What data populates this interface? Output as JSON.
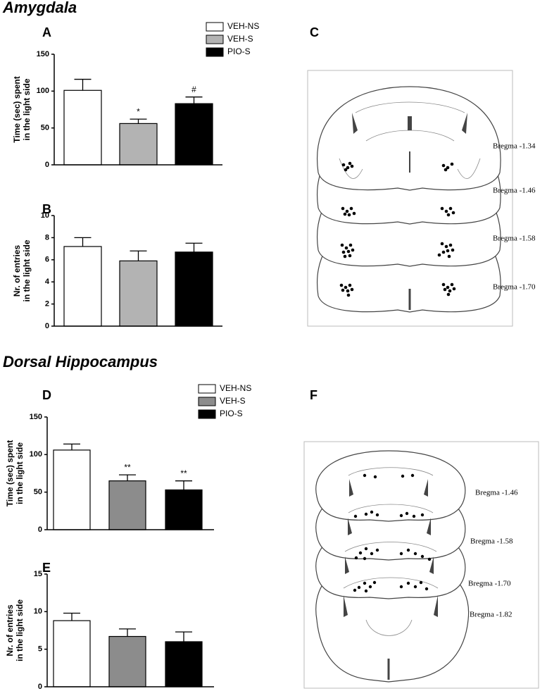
{
  "sections": [
    {
      "title": "Amygdala"
    },
    {
      "title": "Dorsal Hippocampus"
    }
  ],
  "chart_data": [
    {
      "type": "bar",
      "panel": "A",
      "ylabel": [
        "Time (sec) spent",
        "in the light side"
      ],
      "ylim": [
        0,
        150
      ],
      "yticks": [
        0,
        50,
        100,
        150
      ],
      "legend": true,
      "series": [
        {
          "name": "VEH-NS",
          "color": "#ffffff",
          "values": [
            101
          ],
          "errors": [
            15
          ]
        },
        {
          "name": "VEH-S",
          "color": "#b3b3b3",
          "values": [
            56
          ],
          "errors": [
            6
          ],
          "significance": [
            "*"
          ]
        },
        {
          "name": "PIO-S",
          "color": "#000000",
          "values": [
            83
          ],
          "errors": [
            9
          ],
          "significance": [
            "#"
          ]
        }
      ]
    },
    {
      "type": "bar",
      "panel": "B",
      "ylabel": [
        "Nr. of entries",
        "in the light side"
      ],
      "ylim": [
        0,
        10
      ],
      "yticks": [
        0,
        2,
        4,
        6,
        8,
        10
      ],
      "legend": false,
      "series": [
        {
          "color": "#ffffff",
          "values": [
            7.2
          ],
          "errors": [
            0.8
          ]
        },
        {
          "color": "#b3b3b3",
          "values": [
            5.9
          ],
          "errors": [
            0.9
          ]
        },
        {
          "color": "#000000",
          "values": [
            6.7
          ],
          "errors": [
            0.8
          ]
        }
      ]
    },
    {
      "type": "bar",
      "panel": "D",
      "ylabel": [
        "Time (sec) spent",
        "in the light side"
      ],
      "ylim": [
        0,
        150
      ],
      "yticks": [
        0,
        50,
        100,
        150
      ],
      "legend": true,
      "series": [
        {
          "name": "VEH-NS",
          "color": "#ffffff",
          "values": [
            106
          ],
          "errors": [
            8
          ]
        },
        {
          "name": "VEH-S",
          "color": "#8c8c8c",
          "values": [
            65
          ],
          "errors": [
            8
          ],
          "significance": [
            "**"
          ]
        },
        {
          "name": "PIO-S",
          "color": "#000000",
          "values": [
            53
          ],
          "errors": [
            12
          ],
          "significance": [
            "**"
          ]
        }
      ]
    },
    {
      "type": "bar",
      "panel": "E",
      "ylabel": [
        "Nr. of entries",
        "in the light side"
      ],
      "ylim": [
        0,
        15
      ],
      "yticks": [
        0,
        5,
        10,
        15
      ],
      "legend": false,
      "series": [
        {
          "color": "#ffffff",
          "values": [
            8.8
          ],
          "errors": [
            1.0
          ]
        },
        {
          "color": "#8c8c8c",
          "values": [
            6.7
          ],
          "errors": [
            1.0
          ]
        },
        {
          "color": "#000000",
          "values": [
            6.0
          ],
          "errors": [
            1.3
          ]
        }
      ]
    }
  ],
  "diagrams": [
    {
      "panel": "C",
      "labels": [
        "Bregma -1.34",
        "Bregma -1.46",
        "Bregma -1.58",
        "Bregma -1.70"
      ]
    },
    {
      "panel": "F",
      "labels": [
        "Bregma -1.46",
        "Bregma -1.58",
        "Bregma -1.70",
        "Bregma -1.82"
      ]
    }
  ]
}
